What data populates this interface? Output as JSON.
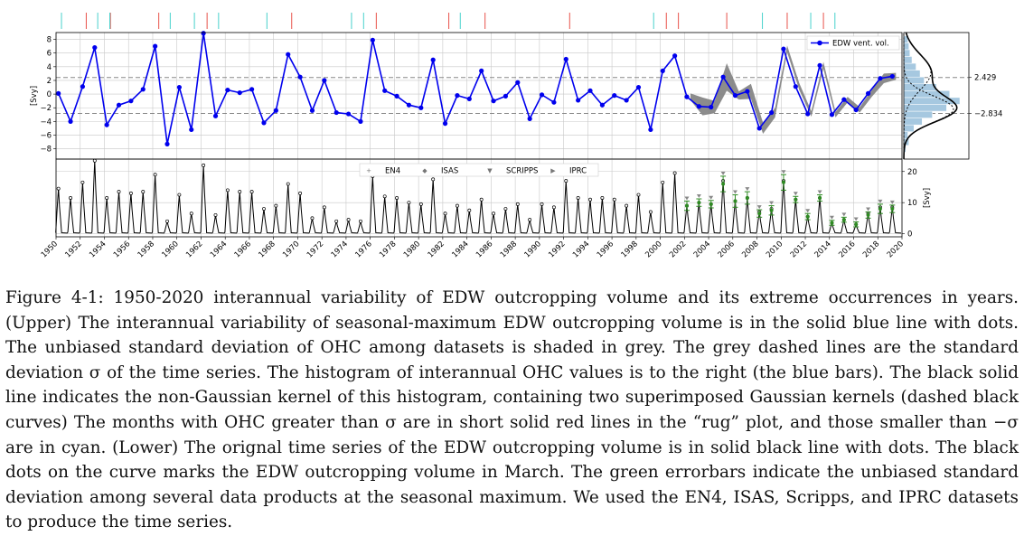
{
  "caption": "Figure 4-1: 1950-2020 interannual variability of EDW outcropping volume and its extreme occurrences in years. (Upper) The interannual variability of seasonal-maximum EDW outcropping volume is in the solid blue line with dots. The unbiased standard deviation of OHC among datasets is shaded in grey. The grey dashed lines are the standard deviation σ of the time series. The histogram of interannual OHC values is to the right (the blue bars). The black solid line indicates the non-Gaussian kernel of this histogram, containing two superimposed Gaussian kernels (dashed black curves) The months with OHC greater than σ are in short solid red lines in the “rug” plot, and those smaller than −σ are in cyan. (Lower) The orignal time series of the EDW outcropping volume is in solid black line with dots. The black dots on the curve marks the EDW outcropping volume in March. The green errorbars indicate the unbiased standard deviation among several data products at the seasonal maximum. We used the EN4, ISAS, Scripps, and IPRC datasets to produce the time series.",
  "colors": {
    "series": "#0000ee",
    "shade": "#808080",
    "hist": "#a6c8e0",
    "rug_pos": "#e8524a",
    "rug_neg": "#48d1cc",
    "errbar": "#2e8b22"
  },
  "chart_data": [
    {
      "type": "line",
      "panel": "upper",
      "ylabel": "[Svy]",
      "ylim": [
        -9.5,
        9
      ],
      "yticks": [
        -8,
        -6,
        -4,
        -2,
        0,
        2,
        4,
        6,
        8
      ],
      "xlim": [
        1950,
        2020
      ],
      "grid": true,
      "legend": "top-right",
      "x": [
        1950,
        1951,
        1952,
        1953,
        1954,
        1955,
        1956,
        1957,
        1958,
        1959,
        1960,
        1961,
        1962,
        1963,
        1964,
        1965,
        1966,
        1967,
        1968,
        1969,
        1970,
        1971,
        1972,
        1973,
        1974,
        1975,
        1976,
        1977,
        1978,
        1979,
        1980,
        1981,
        1982,
        1983,
        1984,
        1985,
        1986,
        1987,
        1988,
        1989,
        1990,
        1991,
        1992,
        1993,
        1994,
        1995,
        1996,
        1997,
        1998,
        1999,
        2000,
        2001,
        2002,
        2003,
        2004,
        2005,
        2006,
        2007,
        2008,
        2009,
        2010,
        2011,
        2012,
        2013,
        2014,
        2015,
        2016,
        2017,
        2018,
        2019
      ],
      "series": [
        {
          "name": "EDW vent. vol.",
          "values": [
            0.1,
            -4.0,
            1.1,
            6.8,
            -4.5,
            -1.6,
            -1.0,
            0.7,
            7.0,
            -7.3,
            1.0,
            -5.2,
            8.9,
            -3.2,
            0.6,
            0.2,
            0.7,
            -4.2,
            -2.4,
            5.8,
            2.5,
            -2.4,
            2.0,
            -2.7,
            -2.9,
            -4.0,
            7.9,
            0.5,
            -0.3,
            -1.6,
            -2.0,
            5.0,
            -4.3,
            -0.2,
            -0.7,
            3.4,
            -1.0,
            -0.3,
            1.7,
            -3.6,
            -0.1,
            -1.2,
            5.1,
            -0.9,
            0.5,
            -1.6,
            -0.2,
            -0.9,
            1.0,
            -5.2,
            3.4,
            5.6,
            -0.4,
            -1.8,
            -1.9,
            2.5,
            -0.2,
            0.4,
            -5.0,
            -2.7,
            6.6,
            1.1,
            -2.9,
            4.2,
            -3.0,
            -0.8,
            -2.3,
            0.1,
            2.3,
            2.6
          ]
        }
      ],
      "std_band_x": [
        2002,
        2003,
        2004,
        2005,
        2006,
        2007,
        2008,
        2009,
        2010,
        2011,
        2012,
        2013,
        2014,
        2015,
        2016,
        2017,
        2018,
        2019
      ],
      "std_band_halfwidth": [
        0.5,
        1.3,
        0.9,
        2.0,
        0.6,
        1.1,
        0.8,
        0.7,
        0.5,
        0.5,
        0.4,
        0.5,
        0.4,
        0.4,
        0.4,
        0.5,
        0.7,
        0.5
      ],
      "hlines": [
        2.429,
        -2.834
      ],
      "rug_pos_years": [
        1952,
        1954,
        1958,
        1962,
        1969,
        1976,
        1982,
        1985,
        1992,
        2000,
        2001,
        2005,
        2010,
        2013
      ],
      "rug_neg_years": [
        1950,
        1953,
        1954,
        1959,
        1961,
        1963,
        1967,
        1974,
        1975,
        1983,
        1999,
        2008,
        2012,
        2014
      ]
    },
    {
      "type": "histogram",
      "panel": "upper-right",
      "orientation": "horizontal",
      "tick_labels": [
        "2.429",
        "−2.834"
      ],
      "bin_edges": [
        -8.5,
        -7.5,
        -6.5,
        -5.5,
        -4.5,
        -3.5,
        -2.5,
        -1.5,
        -0.5,
        0.5,
        1.5,
        2.5,
        3.5,
        4.5,
        5.5,
        6.5,
        7.5,
        8.5
      ],
      "counts": [
        0.02,
        0.05,
        0.04,
        0.1,
        0.18,
        0.28,
        0.42,
        0.55,
        0.45,
        0.32,
        0.2,
        0.16,
        0.12,
        0.08,
        0.06,
        0.05,
        0.04
      ]
    },
    {
      "type": "line",
      "panel": "lower",
      "ylabel": "[Svy]",
      "ylim": [
        -1,
        24
      ],
      "yticks": [
        0,
        10,
        20
      ],
      "xlim": [
        1950,
        2020
      ],
      "xticks": [
        "1950",
        "1952",
        "1954",
        "1956",
        "1958",
        "1960",
        "1962",
        "1964",
        "1966",
        "1968",
        "1970",
        "1972",
        "1974",
        "1976",
        "1978",
        "1980",
        "1982",
        "1984",
        "1986",
        "1988",
        "1990",
        "1992",
        "1994",
        "1996",
        "1998",
        "2000",
        "2002",
        "2004",
        "2006",
        "2008",
        "2010",
        "2012",
        "2014",
        "2016",
        "2018",
        "2020"
      ],
      "grid": true,
      "legend_entries": [
        "EN4",
        "ISAS",
        "SCRIPPS",
        "IPRC"
      ],
      "peak_x": [
        1950,
        1951,
        1952,
        1953,
        1954,
        1955,
        1956,
        1957,
        1958,
        1959,
        1960,
        1961,
        1962,
        1963,
        1964,
        1965,
        1966,
        1967,
        1968,
        1969,
        1970,
        1971,
        1972,
        1973,
        1974,
        1975,
        1976,
        1977,
        1978,
        1979,
        1980,
        1981,
        1982,
        1983,
        1984,
        1985,
        1986,
        1987,
        1988,
        1989,
        1990,
        1991,
        1992,
        1993,
        1994,
        1995,
        1996,
        1997,
        1998,
        1999,
        2000,
        2001,
        2002,
        2003,
        2004,
        2005,
        2006,
        2007,
        2008,
        2009,
        2010,
        2011,
        2012,
        2013,
        2014,
        2015,
        2016,
        2017,
        2018,
        2019
      ],
      "peaks": [
        14.5,
        11.5,
        16.5,
        23.5,
        11.5,
        13.5,
        13.0,
        13.5,
        19.0,
        4.0,
        12.5,
        6.5,
        22.0,
        6.0,
        14.0,
        13.5,
        13.5,
        8.0,
        9.0,
        16.0,
        13.0,
        5.0,
        8.5,
        4.0,
        4.5,
        4.0,
        18.5,
        12.0,
        11.5,
        10.0,
        9.5,
        17.5,
        6.5,
        9.0,
        7.5,
        11.0,
        6.5,
        8.0,
        9.5,
        4.5,
        9.5,
        8.5,
        17.0,
        11.5,
        11.0,
        11.5,
        11.0,
        9.0,
        12.5,
        7.0,
        16.5,
        19.5,
        9.0,
        10.0,
        9.5,
        17.0,
        10.5,
        11.5,
        7.0,
        8.0,
        17.0,
        11.0,
        5.5,
        11.5,
        3.5,
        4.5,
        3.0,
        6.5,
        8.5,
        8.5
      ],
      "errbar_x": [
        2002,
        2003,
        2004,
        2005,
        2006,
        2007,
        2008,
        2009,
        2010,
        2011,
        2012,
        2013,
        2014,
        2015,
        2016,
        2017,
        2018,
        2019
      ],
      "errbar_center": [
        9.0,
        10.0,
        9.5,
        16.0,
        10.5,
        11.5,
        6.5,
        7.5,
        16.5,
        11.0,
        5.5,
        11.5,
        3.5,
        4.5,
        3.0,
        6.0,
        8.0,
        8.0
      ],
      "errbar_halfwidth": [
        1.5,
        1.2,
        1.2,
        2.5,
        2.0,
        2.0,
        1.2,
        1.5,
        2.5,
        1.0,
        1.0,
        1.0,
        0.8,
        0.8,
        0.8,
        1.0,
        1.5,
        1.2
      ]
    }
  ]
}
